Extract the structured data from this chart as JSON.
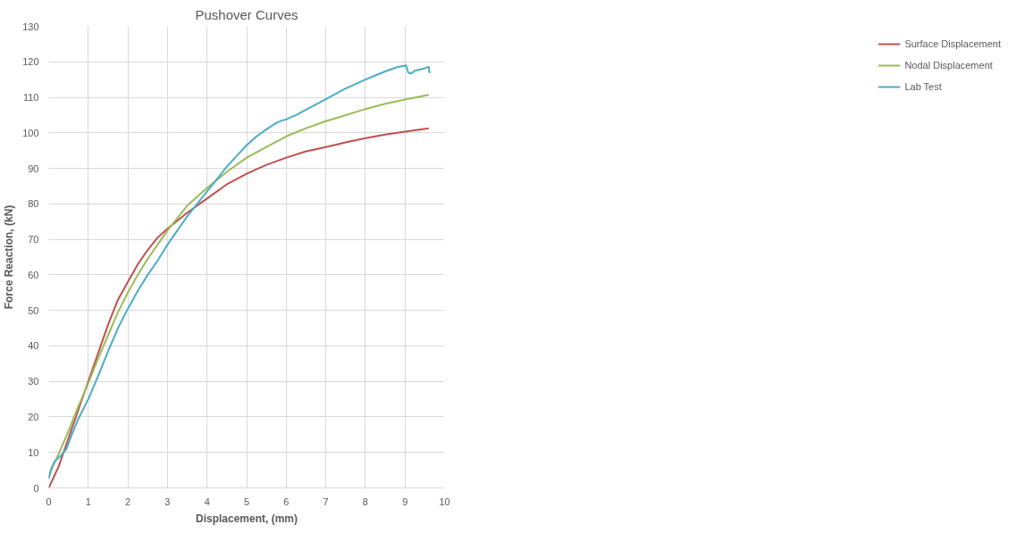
{
  "chart_data": {
    "type": "line",
    "title": "Pushover Curves",
    "xlabel": "Displacement, (mm)",
    "ylabel": "Force Reaction, (kN)",
    "xlim": [
      0,
      10
    ],
    "ylim": [
      0,
      130
    ],
    "xticks": [
      0,
      1,
      2,
      3,
      4,
      5,
      6,
      7,
      8,
      9,
      10
    ],
    "yticks": [
      0,
      10,
      20,
      30,
      40,
      50,
      60,
      70,
      80,
      90,
      100,
      110,
      120,
      130
    ],
    "grid": true,
    "legend": "right",
    "marker": "none",
    "line_style": "solid",
    "series": [
      {
        "name": "Surface Displacement",
        "color": "#c0504d",
        "x": [
          0,
          0.25,
          0.5,
          0.75,
          1,
          1.25,
          1.5,
          1.75,
          2,
          2.25,
          2.5,
          2.75,
          3,
          3.5,
          4,
          4.5,
          5,
          5.5,
          6,
          6.5,
          7,
          7.5,
          8,
          8.5,
          9,
          9.6
        ],
        "values": [
          0,
          6,
          14,
          22,
          30,
          38,
          46,
          53,
          58,
          63,
          67,
          70.5,
          73,
          77.5,
          81.5,
          85.5,
          88.5,
          91,
          93,
          94.8,
          96,
          97.3,
          98.5,
          99.5,
          100.3,
          101.3
        ]
      },
      {
        "name": "Nodal Displacement",
        "color": "#9bbb59",
        "x": [
          0,
          0.1,
          0.25,
          0.5,
          0.75,
          1,
          1.25,
          1.5,
          1.75,
          2,
          2.25,
          2.5,
          2.75,
          3,
          3.5,
          4,
          4.5,
          5,
          5.5,
          6,
          6.5,
          7,
          7.5,
          8,
          8.5,
          9,
          9.6
        ],
        "values": [
          3,
          6,
          9.5,
          16,
          23,
          29.5,
          36.5,
          43,
          49.5,
          55,
          60,
          64.5,
          68.5,
          72.5,
          79.5,
          84.5,
          89,
          93,
          96,
          99,
          101.3,
          103.3,
          105,
          106.7,
          108.2,
          109.4,
          110.7
        ]
      },
      {
        "name": "Lab Test",
        "color": "#4bacc6",
        "x": [
          0,
          0.05,
          0.15,
          0.3,
          0.45,
          0.6,
          0.75,
          1,
          1.25,
          1.5,
          1.75,
          2,
          2.25,
          2.5,
          2.75,
          3,
          3.25,
          3.5,
          3.75,
          4,
          4.25,
          4.5,
          4.75,
          5,
          5.25,
          5.5,
          5.75,
          5.9,
          6,
          6.25,
          6.5,
          7,
          7.5,
          8,
          8.5,
          8.8,
          9.03,
          9.08,
          9.15,
          9.25,
          9.5,
          9.6,
          9.62
        ],
        "values": [
          2.5,
          5,
          7.5,
          9,
          11,
          15.5,
          19.5,
          25,
          31.5,
          38.5,
          45,
          50.5,
          55.5,
          60,
          64,
          68.5,
          72.5,
          76.5,
          80,
          83.5,
          87,
          90.5,
          93.5,
          96.5,
          99,
          101,
          102.8,
          103.5,
          103.8,
          105,
          106.5,
          109.5,
          112.5,
          115,
          117.3,
          118.5,
          119,
          117,
          116.7,
          117.5,
          118.2,
          118.6,
          116.8
        ]
      }
    ]
  }
}
